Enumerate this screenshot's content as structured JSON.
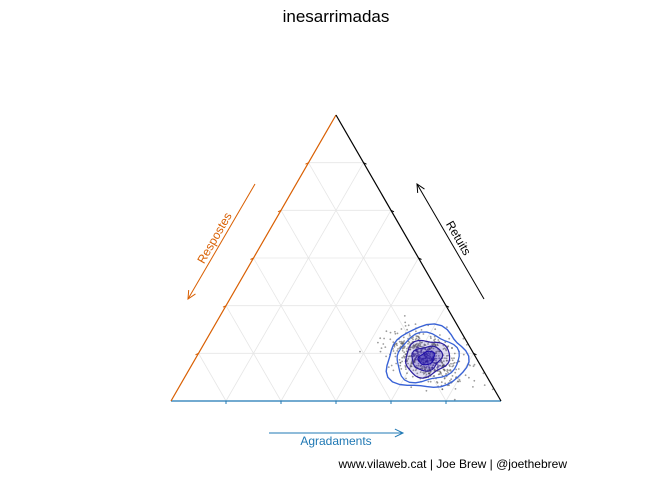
{
  "chart_data": {
    "type": "scatter",
    "subtype": "ternary",
    "title": "inesarrimadas",
    "axes": {
      "bottom": {
        "label": "Agradaments",
        "color": "#1f78b4"
      },
      "left": {
        "label": "Respostes",
        "color": "#d95f02"
      },
      "right": {
        "label": "Retuits",
        "color": "#000000"
      }
    },
    "caption": "www.vilaweb.cat | Joe Brew | @joethebrew",
    "grid": true,
    "density_contours": true,
    "center": {
      "Agradaments": 0.7,
      "Respostes": 0.15,
      "Retuits": 0.15
    },
    "points_approx": 600,
    "colors": {
      "points": "#4a4a4a",
      "contour_outer": "#3a63d6",
      "contour_inner": "#2b1d9e",
      "core": "#1a0aa8"
    }
  }
}
